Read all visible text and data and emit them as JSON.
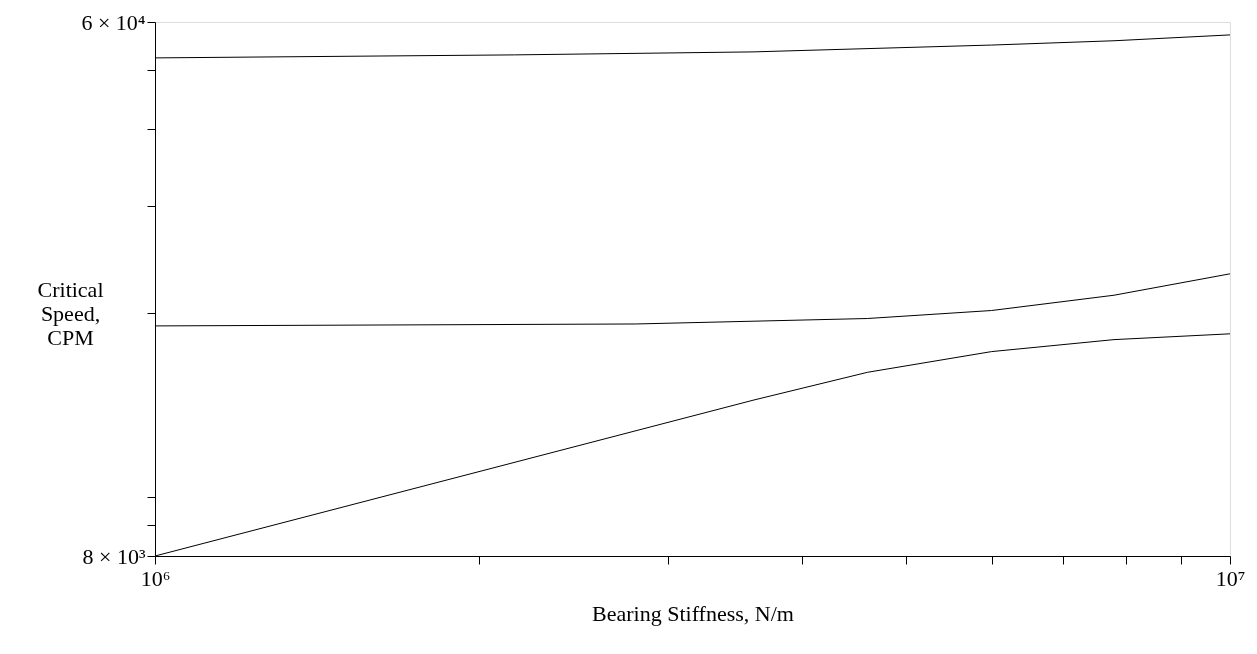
{
  "chart_data": {
    "type": "line",
    "xlabel": "Bearing Stiffness, N/m",
    "ylabel": "Critical Speed, CPM",
    "log": "xy",
    "grid": false,
    "marker": "none",
    "line_style": "solid",
    "xlim": [
      1000000,
      10000000
    ],
    "ylim": [
      8000,
      60000
    ],
    "xticks": [
      {
        "value": 1000000,
        "label": "10⁶"
      },
      {
        "value": 2000000,
        "label": null
      },
      {
        "value": 3000000,
        "label": null
      },
      {
        "value": 4000000,
        "label": null
      },
      {
        "value": 5000000,
        "label": null
      },
      {
        "value": 6000000,
        "label": null
      },
      {
        "value": 7000000,
        "label": null
      },
      {
        "value": 8000000,
        "label": null
      },
      {
        "value": 9000000,
        "label": null
      },
      {
        "value": 10000000,
        "label": "10⁷"
      }
    ],
    "yticks": [
      {
        "value": 8000,
        "label": "8 × 10³"
      },
      {
        "value": 9000,
        "label": null
      },
      {
        "value": 10000,
        "label": null
      },
      {
        "value": 20000,
        "label": null
      },
      {
        "value": 30000,
        "label": null
      },
      {
        "value": 40000,
        "label": null
      },
      {
        "value": 50000,
        "label": null
      },
      {
        "value": 60000,
        "label": "6 × 10⁴"
      }
    ],
    "series": [
      {
        "color": "#000000",
        "x": [
          1000000,
          2160000,
          3600000,
          6000000,
          7800000,
          10000000
        ],
        "values": [
          52400,
          53000,
          53600,
          55000,
          55900,
          57150
        ]
      },
      {
        "color": "#000000",
        "x": [
          1000000,
          2800000,
          4600000,
          6000000,
          7800000,
          10000000
        ],
        "values": [
          19060,
          19200,
          19600,
          20200,
          21400,
          23200
        ]
      },
      {
        "color": "#000000",
        "x": [
          1000000,
          3600000,
          4600000,
          6000000,
          7800000,
          10000000
        ],
        "values": [
          8000,
          14400,
          16000,
          17300,
          18100,
          18500
        ]
      }
    ]
  }
}
